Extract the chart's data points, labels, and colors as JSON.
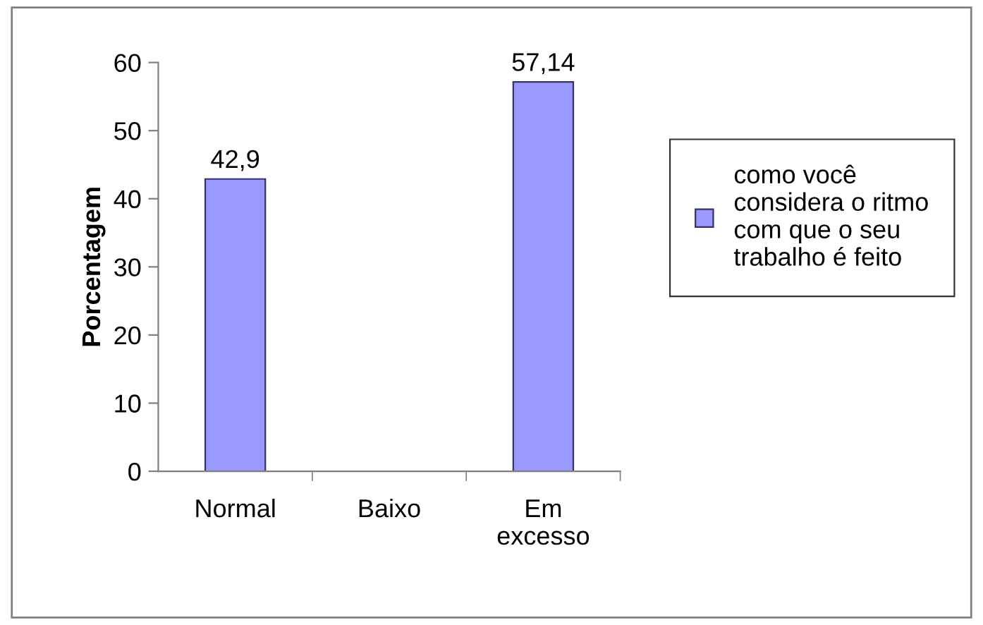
{
  "chart_data": {
    "type": "bar",
    "ylabel": "Porcentagem",
    "categories": [
      "Normal",
      "Baixo",
      "Em\nexcesso"
    ],
    "series": [
      {
        "name": "como você\nconsidera o ritmo\ncom que o seu\ntrabalho é feito",
        "color": "#9999ff",
        "values": [
          42.9,
          null,
          57.14
        ],
        "value_labels": [
          "42,9",
          null,
          "57,14"
        ]
      }
    ],
    "ylim": [
      0,
      60
    ],
    "yticks": [
      0,
      10,
      20,
      30,
      40,
      50,
      60
    ],
    "grid": false,
    "legend": "right"
  }
}
